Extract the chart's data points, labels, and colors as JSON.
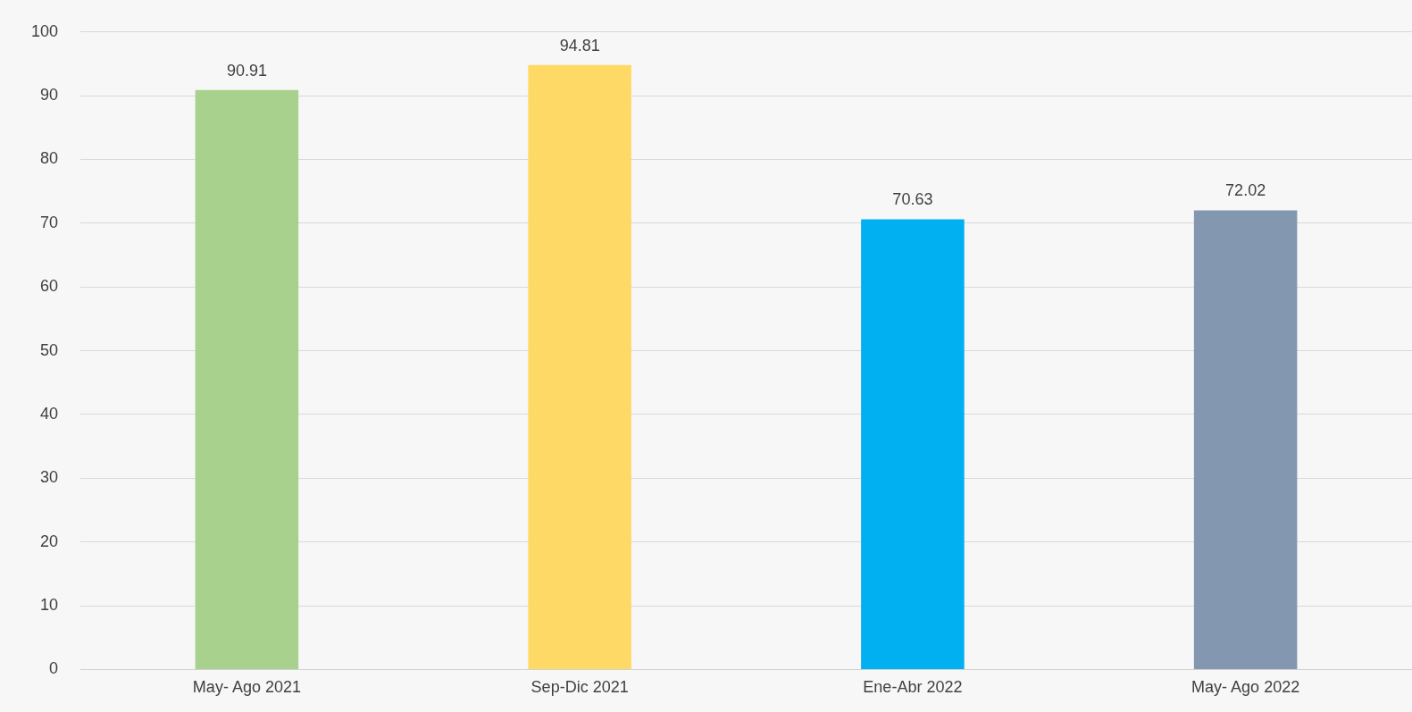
{
  "chart_data": {
    "type": "bar",
    "categories": [
      "May- Ago 2021",
      "Sep-Dic 2021",
      "Ene-Abr 2022",
      "May- Ago 2022"
    ],
    "values": [
      90.91,
      94.81,
      70.63,
      72.02
    ],
    "colors": [
      "#a9d18e",
      "#ffd966",
      "#00b0f0",
      "#8497b0"
    ],
    "ylim": [
      0,
      100
    ],
    "yticks": [
      0,
      10,
      20,
      30,
      40,
      50,
      60,
      70,
      80,
      90,
      100
    ],
    "grid": "y",
    "legend": false,
    "data_labels": true
  }
}
